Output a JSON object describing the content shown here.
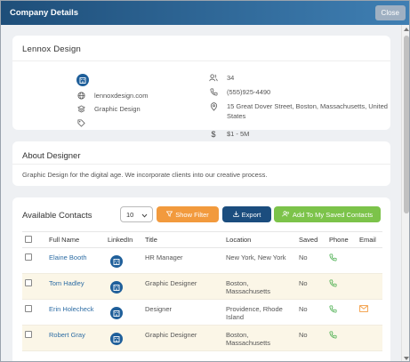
{
  "modal": {
    "title": "Company Details",
    "close_label": "Close"
  },
  "company": {
    "name": "Lennox Design",
    "website": "lennoxdesign.com",
    "industry": "Graphic Design",
    "employees": "34",
    "phone": "(555)925-4490",
    "address_line1": "15 Great Dover Street, Boston, Massachusetts, United",
    "address_line2": "States",
    "revenue": "$1 - 5M"
  },
  "about": {
    "title": "About Designer",
    "text": "Graphic Design for the digital age. We incorporate clients into our creative process."
  },
  "contacts": {
    "title": "Available Contacts",
    "page_size": "10",
    "show_filter_label": "Show Filter",
    "export_label": "Export",
    "add_saved_label": "Add To My Saved Contacts",
    "columns": [
      "Full Name",
      "LinkedIn",
      "Title",
      "Location",
      "Saved",
      "Phone",
      "Email"
    ],
    "rows": [
      {
        "name": "Elaine Booth",
        "title": "HR Manager",
        "location1": "New York, New York",
        "location2": "",
        "saved": "No",
        "has_email": false
      },
      {
        "name": "Tom Hadley",
        "title": "Graphic Designer",
        "location1": "Boston,",
        "location2": "Massachusetts",
        "saved": "No",
        "has_email": false
      },
      {
        "name": "Erin Holecheck",
        "title": "Designer",
        "location1": "Providence, Rhode",
        "location2": "Island",
        "saved": "No",
        "has_email": true
      },
      {
        "name": "Robert Gray",
        "title": "Graphic Designer",
        "location1": "Boston,",
        "location2": "Massachusetts",
        "saved": "No",
        "has_email": false
      }
    ]
  },
  "colors": {
    "header_start": "#1e4e79",
    "header_end": "#3f7fb3",
    "filter_button": "#f29a3d",
    "export_button": "#1b4d7e",
    "add_button": "#7cc34a",
    "link": "#2e6da4",
    "phone_icon": "#4caf50",
    "email_icon": "#f29a3d"
  },
  "icons": {
    "company_logo": "building-icon",
    "website": "globe-icon",
    "industry": "layers-icon",
    "tag": "tag-icon",
    "employees": "users-icon",
    "phone": "phone-icon",
    "address": "map-pin-icon",
    "revenue": "dollar-icon",
    "linkedin": "linkedin-icon",
    "email": "envelope-icon"
  }
}
